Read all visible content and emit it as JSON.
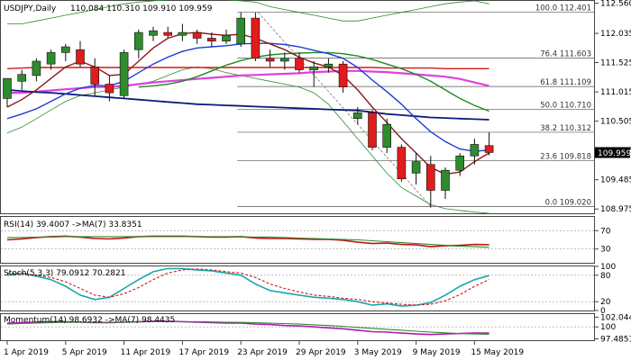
{
  "header": {
    "symbol": "USDJPY,Daily",
    "ohlc": "110.084 110.310 109.910 109.959"
  },
  "indicators": {
    "rsi_label": "RSI(14) 39.4007 ->MA(7) 33.8351",
    "stoch_label": "Stoch(5,3,3) 79.0912 70.2821",
    "momentum_label": "Momentum(14) 98.6932 ->MA(7) 98.4435"
  },
  "price_tag": {
    "value": "109.959",
    "price": 109.959
  },
  "colors": {
    "bull_body": "#2e8b2e",
    "bear_body": "#e21b1b",
    "ma_red": "#d11a1a",
    "ma_magenta": "#e040e0",
    "ma_navy": "#0f1a7a",
    "ma_green": "#1f8b1f",
    "ma_blue": "#1f3bd6",
    "ma_brown": "#8b1a1a",
    "bollinger": "#2e8b2e",
    "rsi": "#c01515",
    "rsi_ma": "#2e8b2e",
    "stoch_main": "#18a7a7",
    "stoch_signal": "#d11a1a",
    "momentum": "#b01ab0",
    "momentum_ma": "#2e8b2e"
  },
  "chart_data": [
    {
      "type": "candlestick",
      "title": "USDJPY,Daily",
      "ylim": [
        108.9,
        112.6
      ],
      "y_ticks": [
        "112.560",
        "112.035",
        "111.525",
        "111.015",
        "110.505",
        "109.995",
        "109.485",
        "108.975"
      ],
      "x_ticks": [
        "1 Apr 2019",
        "5 Apr 2019",
        "11 Apr 2019",
        "17 Apr 2019",
        "23 Apr 2019",
        "29 Apr 2019",
        "3 May 2019",
        "9 May 2019",
        "15 May 2019"
      ],
      "x_tick_bar_index": [
        0,
        4,
        8,
        12,
        16,
        20,
        24,
        28,
        32
      ],
      "candles": [
        {
          "o": 110.9,
          "h": 111.25,
          "l": 110.75,
          "c": 111.25
        },
        {
          "o": 111.2,
          "h": 111.4,
          "l": 111.05,
          "c": 111.32
        },
        {
          "o": 111.3,
          "h": 111.6,
          "l": 111.2,
          "c": 111.55
        },
        {
          "o": 111.5,
          "h": 111.75,
          "l": 111.4,
          "c": 111.7
        },
        {
          "o": 111.7,
          "h": 111.85,
          "l": 111.55,
          "c": 111.8
        },
        {
          "o": 111.75,
          "h": 111.9,
          "l": 111.45,
          "c": 111.5
        },
        {
          "o": 111.45,
          "h": 111.6,
          "l": 110.95,
          "c": 111.15
        },
        {
          "o": 111.15,
          "h": 111.3,
          "l": 110.85,
          "c": 111.0
        },
        {
          "o": 110.95,
          "h": 111.75,
          "l": 110.9,
          "c": 111.7
        },
        {
          "o": 111.75,
          "h": 112.1,
          "l": 111.6,
          "c": 112.05
        },
        {
          "o": 112.0,
          "h": 112.15,
          "l": 111.9,
          "c": 112.08
        },
        {
          "o": 112.05,
          "h": 112.15,
          "l": 111.95,
          "c": 112.0
        },
        {
          "o": 112.0,
          "h": 112.2,
          "l": 111.9,
          "c": 112.05
        },
        {
          "o": 112.05,
          "h": 112.1,
          "l": 111.85,
          "c": 111.95
        },
        {
          "o": 111.95,
          "h": 112.05,
          "l": 111.8,
          "c": 111.9
        },
        {
          "o": 111.9,
          "h": 112.1,
          "l": 111.85,
          "c": 112.0
        },
        {
          "o": 111.85,
          "h": 112.4,
          "l": 111.8,
          "c": 112.3
        },
        {
          "o": 112.3,
          "h": 112.4,
          "l": 111.55,
          "c": 111.6
        },
        {
          "o": 111.6,
          "h": 111.75,
          "l": 111.45,
          "c": 111.55
        },
        {
          "o": 111.55,
          "h": 111.7,
          "l": 111.4,
          "c": 111.6
        },
        {
          "o": 111.6,
          "h": 111.7,
          "l": 111.35,
          "c": 111.4
        },
        {
          "o": 111.4,
          "h": 111.55,
          "l": 111.1,
          "c": 111.45
        },
        {
          "o": 111.45,
          "h": 111.6,
          "l": 111.35,
          "c": 111.5
        },
        {
          "o": 111.5,
          "h": 111.55,
          "l": 111.0,
          "c": 111.1
        },
        {
          "o": 110.55,
          "h": 110.75,
          "l": 110.45,
          "c": 110.65
        },
        {
          "o": 110.65,
          "h": 110.7,
          "l": 110.0,
          "c": 110.05
        },
        {
          "o": 110.05,
          "h": 110.55,
          "l": 109.95,
          "c": 110.45
        },
        {
          "o": 110.05,
          "h": 110.1,
          "l": 109.45,
          "c": 109.5
        },
        {
          "o": 109.6,
          "h": 109.95,
          "l": 109.4,
          "c": 109.8
        },
        {
          "o": 109.75,
          "h": 109.9,
          "l": 109.0,
          "c": 109.3
        },
        {
          "o": 109.3,
          "h": 109.7,
          "l": 109.15,
          "c": 109.65
        },
        {
          "o": 109.65,
          "h": 109.95,
          "l": 109.55,
          "c": 109.9
        },
        {
          "o": 109.9,
          "h": 110.2,
          "l": 109.75,
          "c": 110.1
        },
        {
          "o": 110.08,
          "h": 110.31,
          "l": 109.91,
          "c": 109.959
        }
      ],
      "series": [
        {
          "name": "MA red",
          "values": [
            111.42,
            111.43,
            111.44,
            111.44,
            111.44,
            111.44,
            111.44,
            111.44,
            111.44,
            111.44,
            111.44,
            111.44,
            111.44,
            111.44,
            111.44,
            111.44,
            111.44,
            111.44,
            111.44,
            111.44,
            111.44,
            111.44,
            111.44,
            111.44,
            111.44,
            111.44,
            111.43,
            111.43,
            111.43,
            111.43,
            111.42,
            111.42,
            111.42,
            111.42
          ]
        },
        {
          "name": "MA magenta",
          "values": [
            111.0,
            111.0,
            111.02,
            111.04,
            111.06,
            111.08,
            111.1,
            111.1,
            111.12,
            111.15,
            111.18,
            111.2,
            111.22,
            111.24,
            111.26,
            111.28,
            111.3,
            111.31,
            111.32,
            111.33,
            111.34,
            111.36,
            111.37,
            111.38,
            111.38,
            111.37,
            111.36,
            111.34,
            111.32,
            111.3,
            111.28,
            111.24,
            111.18,
            111.12
          ]
        },
        {
          "name": "MA navy",
          "values": [
            111.05,
            111.03,
            111.01,
            111.0,
            110.98,
            110.96,
            110.94,
            110.92,
            110.9,
            110.88,
            110.86,
            110.84,
            110.82,
            110.8,
            110.79,
            110.78,
            110.77,
            110.76,
            110.75,
            110.74,
            110.73,
            110.72,
            110.71,
            110.7,
            110.69,
            110.66,
            110.63,
            110.61,
            110.59,
            110.57,
            110.56,
            110.55,
            110.54,
            110.53
          ]
        },
        {
          "name": "MA green",
          "values": [
            null,
            null,
            null,
            null,
            null,
            null,
            null,
            null,
            null,
            111.1,
            111.12,
            111.15,
            111.2,
            111.28,
            111.38,
            111.48,
            111.56,
            111.62,
            111.66,
            111.68,
            111.69,
            111.7,
            111.7,
            111.68,
            111.64,
            111.58,
            111.5,
            111.42,
            111.32,
            111.2,
            111.05,
            110.9,
            110.78,
            110.68
          ]
        },
        {
          "name": "MA blue",
          "values": [
            110.55,
            110.63,
            110.72,
            110.85,
            110.98,
            111.08,
            111.13,
            111.12,
            111.2,
            111.35,
            111.5,
            111.62,
            111.72,
            111.78,
            111.8,
            111.82,
            111.85,
            111.86,
            111.86,
            111.84,
            111.8,
            111.74,
            111.68,
            111.6,
            111.44,
            111.22,
            111.02,
            110.8,
            110.55,
            110.32,
            110.15,
            110.02,
            109.98,
            110.0
          ]
        },
        {
          "name": "MA brown",
          "values": [
            110.75,
            110.88,
            111.05,
            111.25,
            111.45,
            111.55,
            111.45,
            111.3,
            111.32,
            111.55,
            111.78,
            111.95,
            112.03,
            112.05,
            112.02,
            112.0,
            112.02,
            111.95,
            111.85,
            111.75,
            111.62,
            111.52,
            111.45,
            111.3,
            111.05,
            110.75,
            110.48,
            110.2,
            109.95,
            109.7,
            109.58,
            109.62,
            109.8,
            109.95
          ]
        },
        {
          "name": "Bollinger upper",
          "values": [
            112.2,
            112.2,
            112.25,
            112.3,
            112.35,
            112.4,
            112.45,
            112.5,
            112.55,
            112.58,
            112.6,
            112.62,
            112.63,
            112.64,
            112.64,
            112.62,
            112.6,
            112.58,
            112.5,
            112.45,
            112.4,
            112.35,
            112.3,
            112.25,
            112.25,
            112.3,
            112.35,
            112.4,
            112.45,
            112.5,
            112.55,
            112.58,
            112.6,
            112.55
          ]
        },
        {
          "name": "Bollinger lower",
          "values": [
            110.3,
            110.4,
            110.55,
            110.7,
            110.85,
            110.95,
            111.0,
            111.05,
            111.1,
            111.15,
            111.2,
            111.3,
            111.4,
            111.45,
            111.42,
            111.35,
            111.3,
            111.25,
            111.2,
            111.15,
            111.1,
            111.0,
            110.8,
            110.5,
            110.2,
            109.9,
            109.6,
            109.35,
            109.2,
            109.05,
            108.98,
            108.95,
            108.92,
            108.9
          ]
        }
      ],
      "fib_levels": [
        {
          "label": "100.0 112.401",
          "value": 112.401
        },
        {
          "label": "76.4 111.603",
          "value": 111.603
        },
        {
          "label": "61.8 111.109",
          "value": 111.109
        },
        {
          "label": "50.0 110.710",
          "value": 110.71
        },
        {
          "label": "38.2 110.312",
          "value": 110.312
        },
        {
          "label": "23.6 109.818",
          "value": 109.818
        },
        {
          "label": "0.0 109.020",
          "value": 109.02
        }
      ]
    },
    {
      "type": "line",
      "title": "RSI(14) 39.4007 ->MA(7) 33.8351",
      "ylim": [
        0,
        100
      ],
      "y_ticks": [
        "70",
        "30"
      ],
      "series": [
        {
          "name": "RSI",
          "values": [
            50,
            52,
            55,
            57,
            58,
            56,
            53,
            52,
            54,
            57,
            58,
            58,
            58,
            57,
            56,
            56,
            57,
            54,
            53,
            53,
            52,
            51,
            51,
            49,
            45,
            42,
            43,
            40,
            39,
            35,
            37,
            38,
            40,
            39.4
          ]
        },
        {
          "name": "MA",
          "values": [
            55,
            55,
            56,
            56,
            57,
            57,
            57,
            57,
            57,
            57,
            57,
            57,
            57,
            57,
            57,
            57,
            57,
            56,
            56,
            55,
            54,
            53,
            52,
            51,
            50,
            48,
            46,
            44,
            42,
            40,
            38,
            36,
            35,
            33.8
          ]
        }
      ]
    },
    {
      "type": "line",
      "title": "Stoch(5,3,3) 79.0912 70.2821",
      "ylim": [
        0,
        100
      ],
      "y_ticks": [
        "100",
        "80",
        "20",
        "0"
      ],
      "series": [
        {
          "name": "%K",
          "values": [
            80,
            85,
            78,
            70,
            55,
            35,
            25,
            30,
            50,
            70,
            88,
            95,
            95,
            92,
            90,
            85,
            80,
            60,
            45,
            40,
            35,
            30,
            28,
            25,
            20,
            12,
            15,
            10,
            12,
            18,
            35,
            55,
            70,
            79.1
          ]
        },
        {
          "name": "%D",
          "values": [
            85,
            83,
            80,
            75,
            65,
            50,
            35,
            30,
            38,
            52,
            70,
            85,
            92,
            94,
            92,
            88,
            85,
            75,
            60,
            50,
            42,
            35,
            32,
            28,
            25,
            20,
            17,
            14,
            12,
            14,
            22,
            36,
            55,
            70.3
          ]
        }
      ]
    },
    {
      "type": "line",
      "title": "Momentum(14) 98.6932 ->MA(7) 98.4435",
      "ylim": [
        97.2,
        102.7
      ],
      "y_ticks": [
        "102.0449",
        "100",
        "97.4851"
      ],
      "series": [
        {
          "name": "Momentum",
          "values": [
            100.8,
            100.9,
            101.0,
            101.1,
            101.1,
            101.0,
            100.9,
            100.9,
            101.0,
            101.1,
            101.2,
            101.2,
            101.1,
            101.0,
            100.9,
            100.8,
            100.8,
            100.6,
            100.5,
            100.3,
            100.2,
            100.0,
            99.8,
            99.6,
            99.3,
            99.0,
            98.9,
            98.7,
            98.5,
            98.4,
            98.5,
            98.6,
            98.7,
            98.69
          ]
        },
        {
          "name": "MA",
          "values": [
            100.6,
            100.7,
            100.8,
            100.9,
            100.95,
            101.0,
            101.0,
            101.0,
            101.0,
            101.05,
            101.1,
            101.1,
            101.1,
            101.1,
            101.05,
            101.0,
            100.95,
            100.9,
            100.8,
            100.7,
            100.6,
            100.45,
            100.3,
            100.1,
            99.9,
            99.7,
            99.5,
            99.3,
            99.1,
            98.9,
            98.75,
            98.6,
            98.5,
            98.44
          ]
        }
      ]
    }
  ]
}
